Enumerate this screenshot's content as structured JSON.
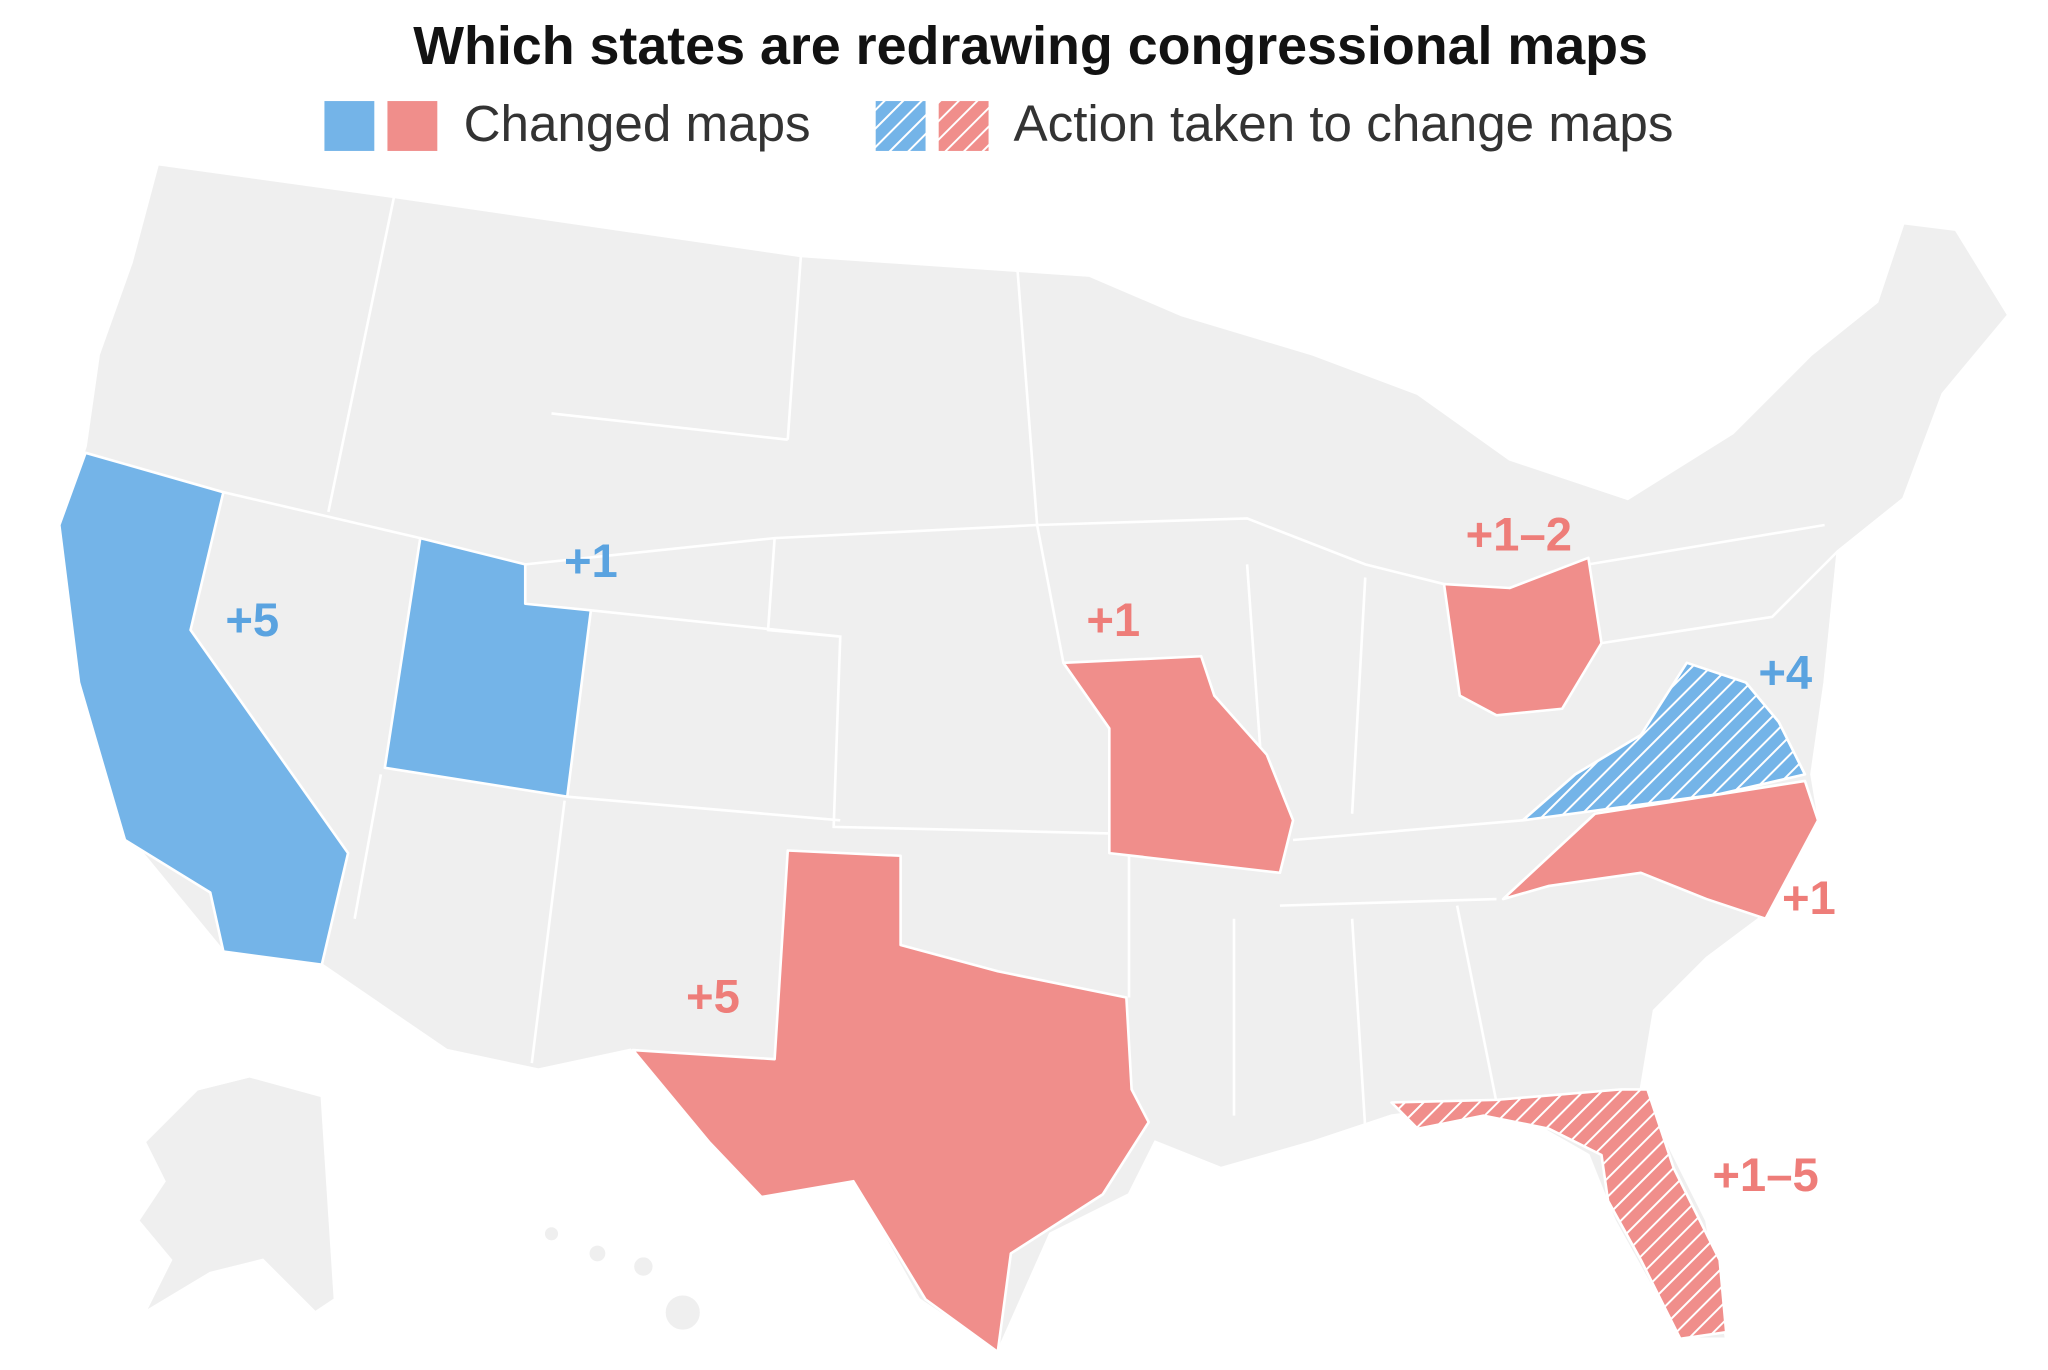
{
  "title": "Which states are redrawing congressional maps",
  "legend": [
    "Changed maps",
    "Action taken to change maps"
  ],
  "labels": [
    "+5",
    "+1",
    "+1",
    "+1–2",
    "+4",
    "+1",
    "+5",
    "+1–5"
  ]
}
